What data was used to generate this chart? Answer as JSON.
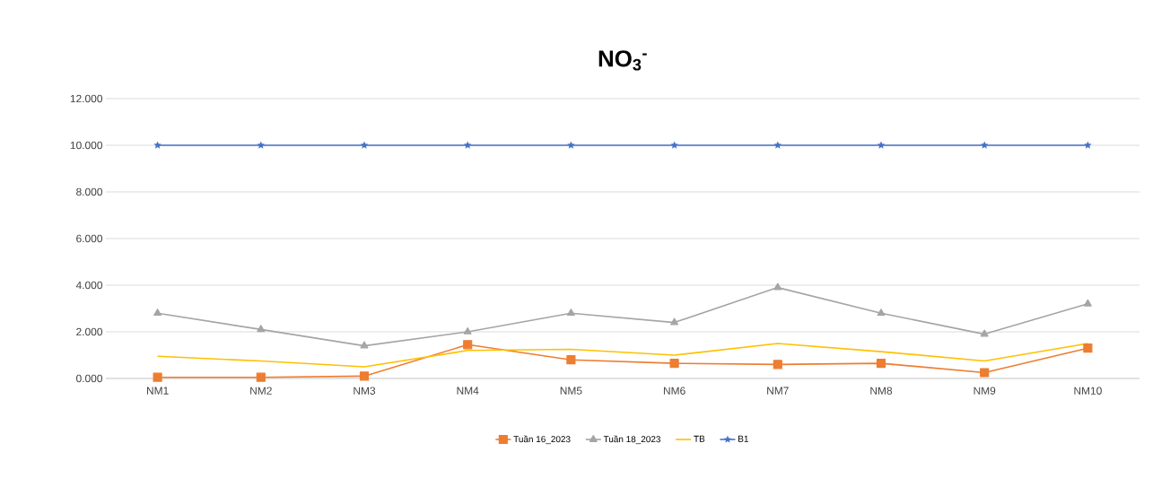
{
  "chart_data": {
    "type": "line",
    "title": "NO$_{3}$$^{-}$",
    "categories": [
      "NM1",
      "NM2",
      "NM3",
      "NM4",
      "NM5",
      "NM6",
      "NM7",
      "NM8",
      "NM9",
      "NM10"
    ],
    "series": [
      {
        "name": "Tuần 16_2023",
        "color": "#ed7d31",
        "marker": "square",
        "values": [
          0.05,
          0.05,
          0.1,
          1.45,
          0.8,
          0.65,
          0.6,
          0.65,
          0.25,
          1.3
        ]
      },
      {
        "name": "Tuần 18_2023",
        "color": "#a5a5a5",
        "marker": "triangle",
        "values": [
          2.8,
          2.1,
          1.4,
          2.0,
          2.8,
          2.4,
          3.9,
          2.8,
          1.9,
          3.2
        ]
      },
      {
        "name": "TB",
        "color": "#ffc000",
        "marker": "none",
        "values": [
          0.95,
          0.75,
          0.5,
          1.2,
          1.25,
          1.0,
          1.5,
          1.15,
          0.75,
          1.5
        ]
      },
      {
        "name": "B1",
        "color": "#4472c4",
        "marker": "star",
        "values": [
          10,
          10,
          10,
          10,
          10,
          10,
          10,
          10,
          10,
          10
        ]
      }
    ],
    "ylim": [
      0,
      12
    ],
    "yticks": [
      {
        "value": 0,
        "label": "0.000"
      },
      {
        "value": 2,
        "label": "2.000"
      },
      {
        "value": 4,
        "label": "4.000"
      },
      {
        "value": 6,
        "label": "6.000"
      },
      {
        "value": 8,
        "label": "8.000"
      },
      {
        "value": 10,
        "label": "10.000"
      },
      {
        "value": 12,
        "label": "12.000"
      }
    ],
    "grid": "y",
    "legend": "bottom"
  }
}
